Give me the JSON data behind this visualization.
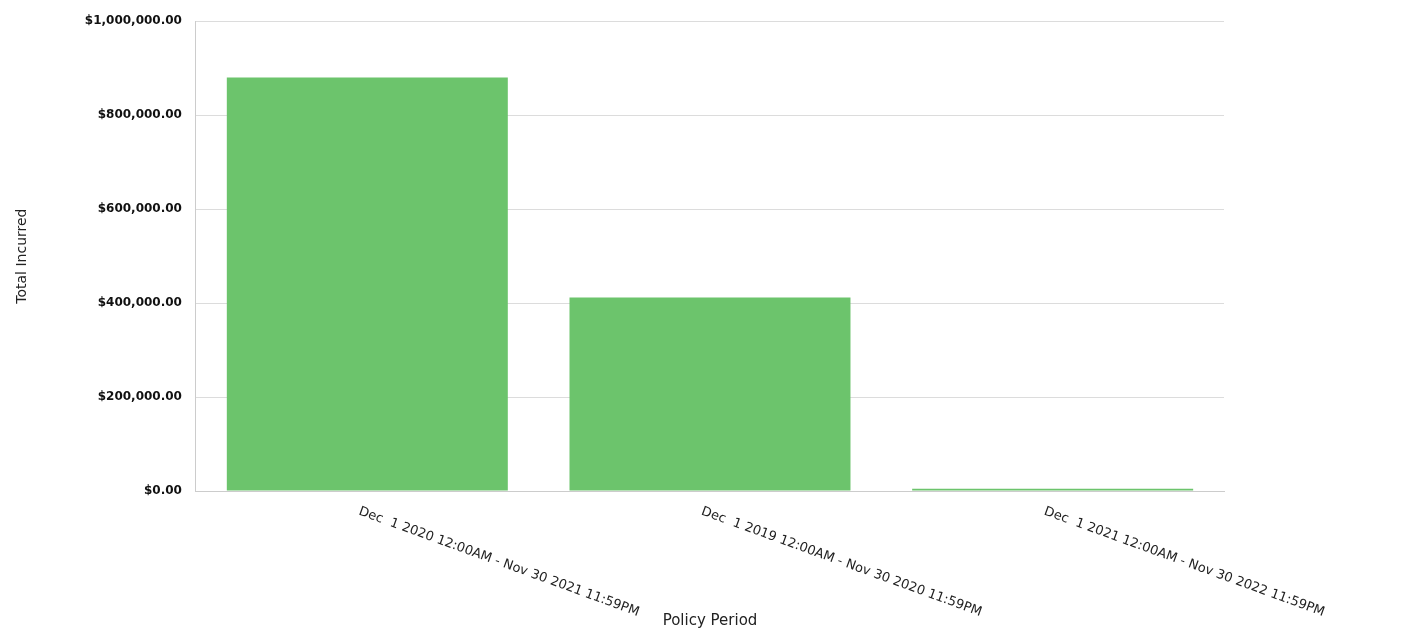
{
  "chart_data": {
    "type": "bar",
    "xlabel": "Policy Period",
    "ylabel": "Total Incurred",
    "categories": [
      "Dec  1 2020 12:00AM - Nov 30 2021 11:59PM",
      "Dec  1 2019 12:00AM - Nov 30 2020 11:59PM",
      "Dec  1 2021 12:00AM - Nov 30 2022 11:59PM"
    ],
    "values": [
      880000,
      412000,
      5000
    ],
    "color": "#6cc46c",
    "ylim": [
      0,
      1000000
    ],
    "yticks": [
      {
        "value": 0,
        "label": "$0.00"
      },
      {
        "value": 200000,
        "label": "$200,000.00"
      },
      {
        "value": 400000,
        "label": "$400,000.00"
      },
      {
        "value": 600000,
        "label": "$600,000.00"
      },
      {
        "value": 800000,
        "label": "$800,000.00"
      },
      {
        "value": 1000000,
        "label": "$1,000,000.00"
      }
    ],
    "grid": "y",
    "legend": false
  }
}
